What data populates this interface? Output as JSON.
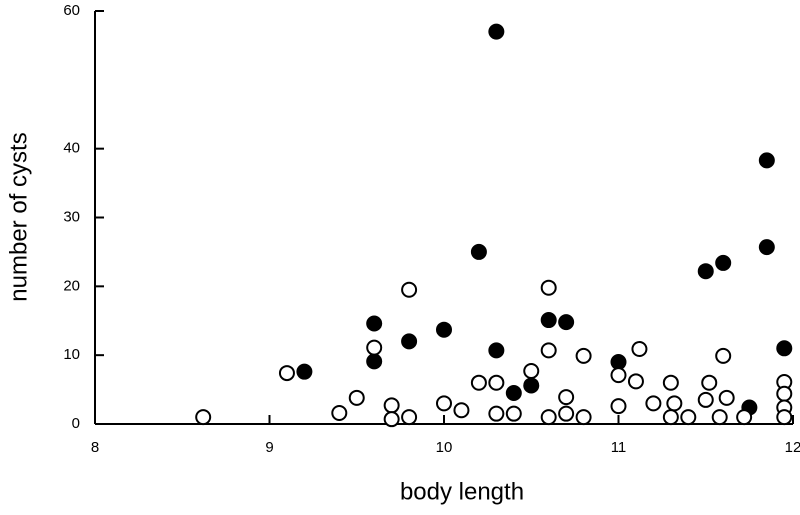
{
  "chart_data": {
    "type": "scatter",
    "x_label": "body length",
    "y_label": "number of cysts",
    "xlim": [
      8,
      12
    ],
    "ylim": [
      0,
      60
    ],
    "xticks": [
      8,
      9,
      10,
      11,
      12
    ],
    "yticks": [
      0,
      10,
      20,
      30,
      40,
      60
    ],
    "series": [
      {
        "marker_fill": "#000000",
        "x": [
          9.2,
          9.6,
          9.6,
          9.8,
          10.0,
          10.2,
          10.3,
          10.3,
          10.4,
          10.5,
          10.6,
          10.7,
          11.0,
          11.5,
          11.6,
          11.75,
          11.85,
          11.85,
          11.95
        ],
        "values": [
          7.6,
          14.6,
          9.1,
          12.0,
          13.7,
          25.0,
          57,
          10.7,
          4.5,
          5.6,
          15.1,
          14.8,
          9.0,
          22.2,
          23.4,
          2.4,
          38.3,
          25.7,
          11.0
        ]
      },
      {
        "marker_fill": "#ffffff",
        "x": [
          8.62,
          9.1,
          9.4,
          9.5,
          9.6,
          9.7,
          9.7,
          9.8,
          9.8,
          10.0,
          10.1,
          10.2,
          10.3,
          10.3,
          10.4,
          10.5,
          10.6,
          10.6,
          10.6,
          10.7,
          10.7,
          10.8,
          10.8,
          11.0,
          11.0,
          11.1,
          11.12,
          11.2,
          11.3,
          11.32,
          11.3,
          11.4,
          11.52,
          11.5,
          11.6,
          11.62,
          11.58,
          11.72,
          11.95,
          11.95,
          11.95,
          11.95
        ],
        "values": [
          1.0,
          7.4,
          1.6,
          3.8,
          11.1,
          2.7,
          0.7,
          19.5,
          1.0,
          3.0,
          2.0,
          6.0,
          6.0,
          1.5,
          1.5,
          7.7,
          19.8,
          10.7,
          1.0,
          3.9,
          1.5,
          9.9,
          1.0,
          7.1,
          2.6,
          6.2,
          10.9,
          3.0,
          6.0,
          3.0,
          1.0,
          1.0,
          6.0,
          3.5,
          9.9,
          3.8,
          1.0,
          1.0,
          6.1,
          4.4,
          2.4,
          1.0
        ]
      }
    ]
  }
}
